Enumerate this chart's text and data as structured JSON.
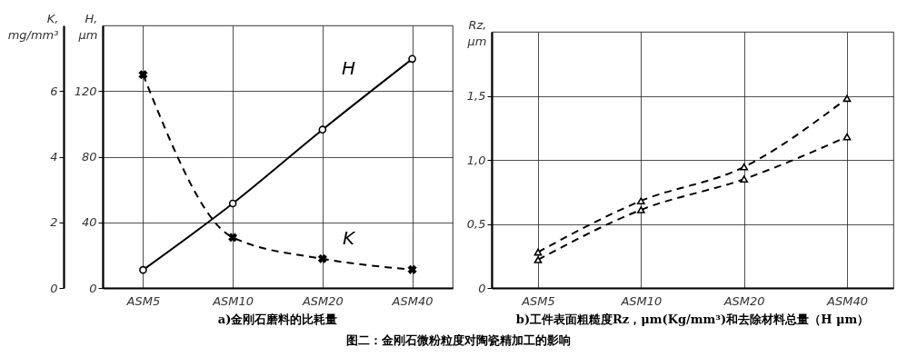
{
  "chart_data": [
    {
      "type": "line",
      "title": "a)金刚石磨料的比耗量",
      "annotations": [
        "图二：金刚石微粉粒度对陶瓷精加工的影响"
      ],
      "categories": [
        "ASM5",
        "ASM10",
        "ASM20",
        "ASM40"
      ],
      "ylabel": "K, mg/mm³",
      "ylim": [
        0,
        8
      ],
      "yticks": [
        0,
        2,
        4,
        6
      ],
      "y2label": "H, μm",
      "y2lim": [
        0,
        160
      ],
      "y2ticks": [
        0,
        40,
        80,
        120
      ],
      "grid": true,
      "series": [
        {
          "name": "K",
          "color": "#000000",
          "values": [
            6.5,
            1.54,
            0.89,
            0.56
          ],
          "marker": "cross",
          "line_style": "dashed"
        },
        {
          "name": "H",
          "color": "#000000",
          "values": [
            11,
            51.5,
            96.5,
            139.6
          ],
          "axis": "y2",
          "marker": "circle",
          "line_style": "solid"
        }
      ]
    },
    {
      "type": "line",
      "title": "b)工件表面粗糙度Rz，μm(Kg/mm³)和去除材料总量（H μm）",
      "categories": [
        "ASM5",
        "ASM10",
        "ASM20",
        "ASM40"
      ],
      "ylabel": "Rz, μm",
      "ylim": [
        0,
        2
      ],
      "yticks": [
        0,
        {
          "value": 0.5,
          "label": "0,5"
        },
        {
          "value": 1,
          "label": "1,0"
        },
        {
          "value": 1.5,
          "label": "1,5"
        }
      ],
      "grid": true,
      "series": [
        {
          "color": "#000000",
          "values": [
            0.28,
            0.68,
            0.945,
            1.48
          ],
          "marker": "triangle",
          "line_style": "dashed"
        },
        {
          "color": "#000000",
          "values": [
            0.22,
            0.61,
            0.85,
            1.18
          ],
          "marker": "triangle",
          "line_style": "dashed"
        }
      ]
    }
  ]
}
